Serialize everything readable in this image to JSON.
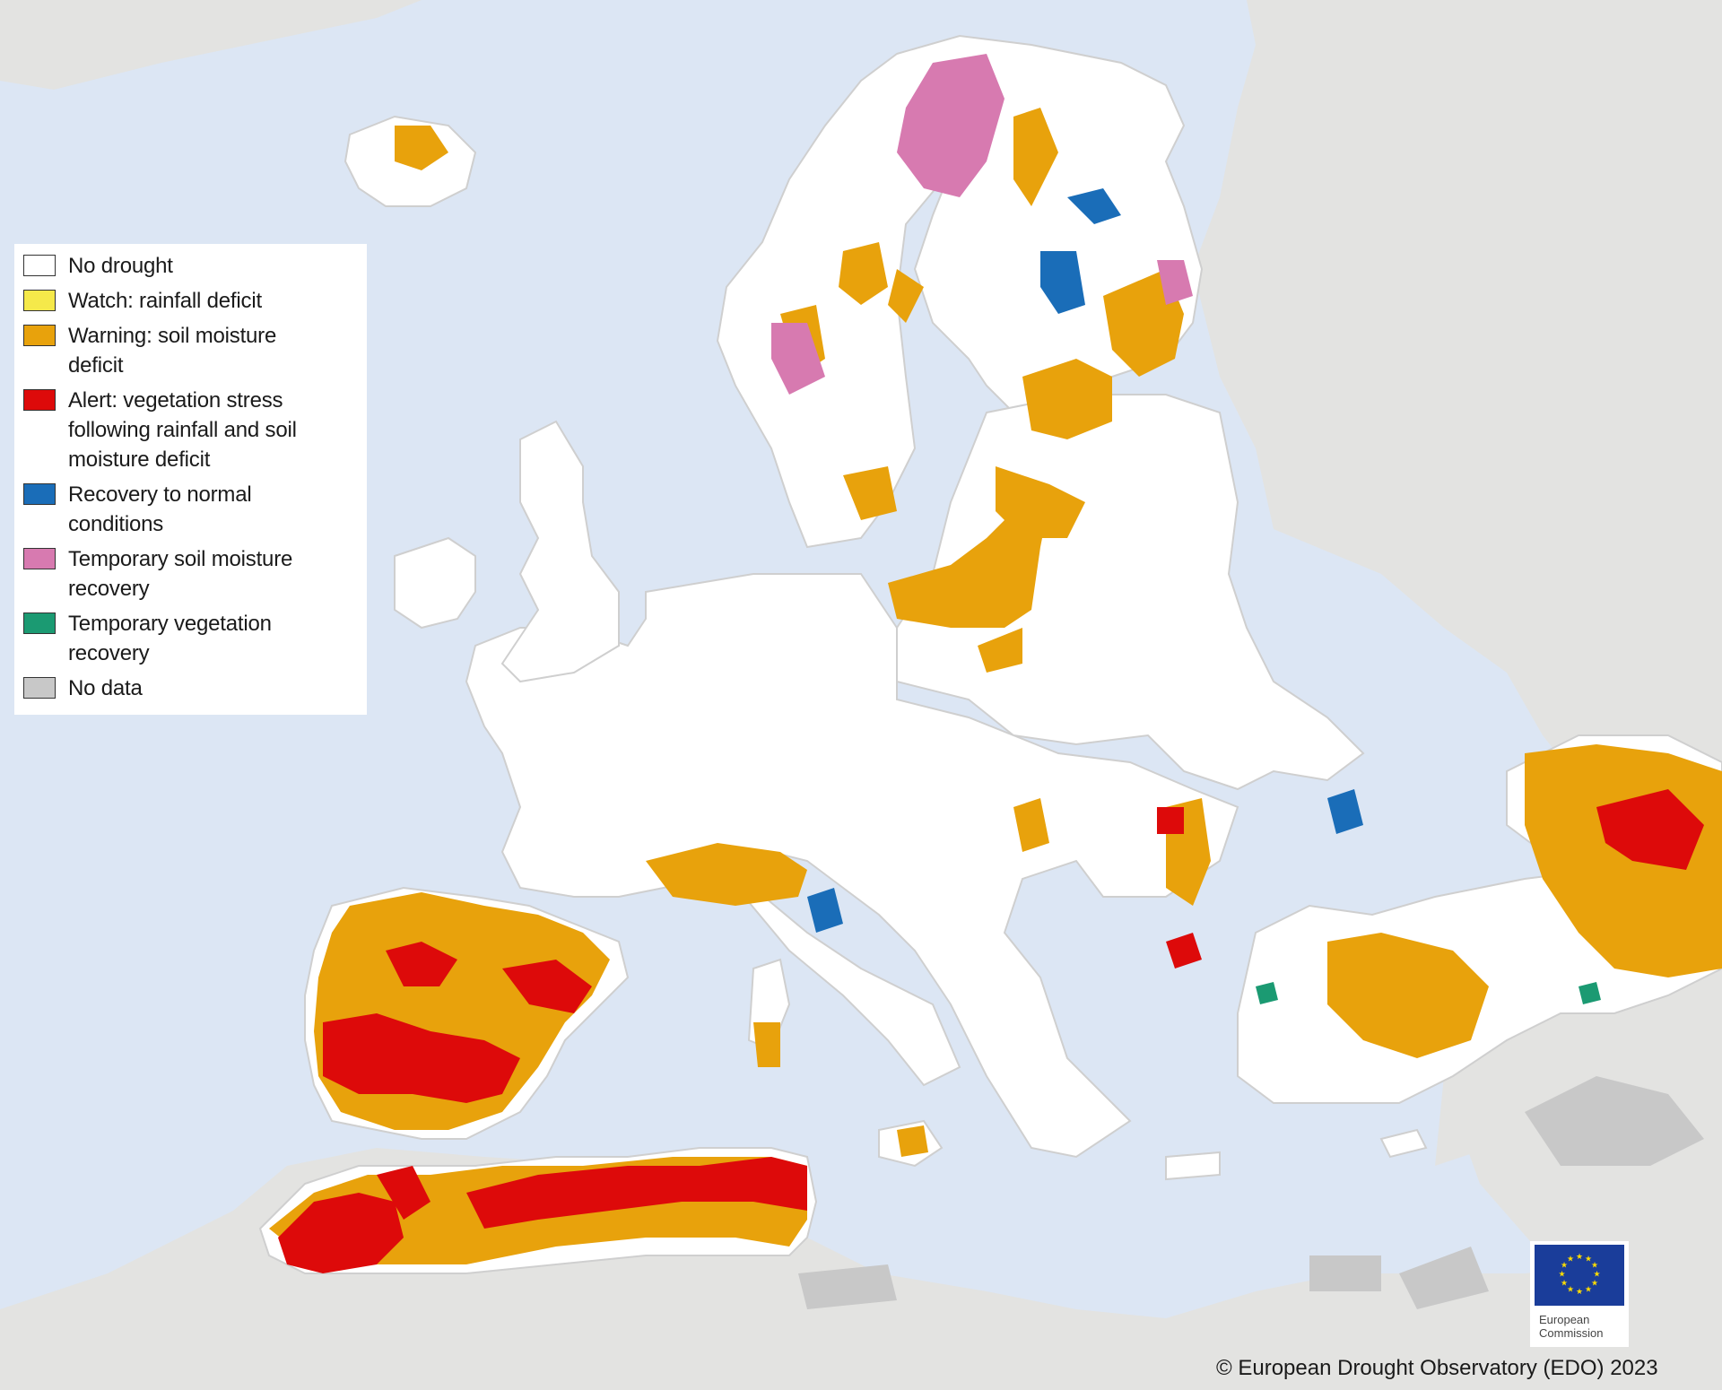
{
  "legend": {
    "items": [
      {
        "label": "No drought",
        "color": "#ffffff"
      },
      {
        "label": "Watch: rainfall deficit",
        "color": "#f5e94a"
      },
      {
        "label": "Warning: soil moisture deficit",
        "color": "#e8a20c"
      },
      {
        "label": "Alert: vegetation stress following rainfall and soil moisture  deficit",
        "color": "#dd0a0a"
      },
      {
        "label": "Recovery to normal conditions",
        "color": "#1a6db8"
      },
      {
        "label": "Temporary soil moisture recovery",
        "color": "#d77ab0"
      },
      {
        "label": "Temporary vegetation recovery",
        "color": "#1b9a72"
      },
      {
        "label": "No data",
        "color": "#c8c8c8"
      }
    ]
  },
  "colors": {
    "sea": "#dce6f4",
    "outside_land": "#e3e3e1",
    "no_data": "#c8c8c8",
    "no_drought": "#ffffff",
    "warning": "#e8a20c",
    "alert": "#dd0a0a",
    "recovery": "#1a6db8",
    "temp_soil": "#d77ab0",
    "temp_veg": "#1b9a72",
    "eu_blue": "#1a3d9a",
    "eu_star": "#ffdd00"
  },
  "logo": {
    "line1": "European",
    "line2": "Commission"
  },
  "credit": "© European Drought Observatory (EDO) 2023"
}
